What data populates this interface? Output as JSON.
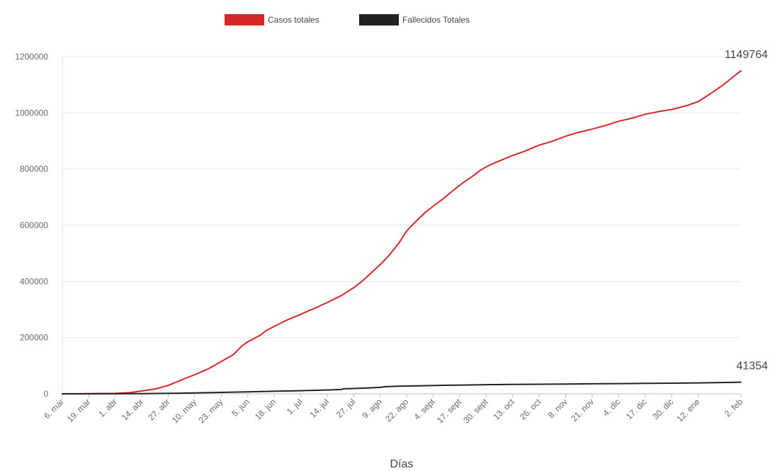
{
  "chart_data": {
    "type": "line",
    "title": "",
    "xlabel": "Días",
    "ylabel": "",
    "ylim": [
      0,
      1200000
    ],
    "yticks": [
      0,
      200000,
      400000,
      600000,
      800000,
      1000000,
      1200000
    ],
    "ytick_labels": [
      "0",
      "200000",
      "400000",
      "600000",
      "800000",
      "1000000",
      "1200000"
    ],
    "x_day_range": [
      0,
      333
    ],
    "x_ticks": [
      {
        "day": 0,
        "label": "6. mar"
      },
      {
        "day": 13,
        "label": "19. mar"
      },
      {
        "day": 26,
        "label": "1. abr"
      },
      {
        "day": 39,
        "label": "14. abr"
      },
      {
        "day": 52,
        "label": "27. abr"
      },
      {
        "day": 65,
        "label": "10. may"
      },
      {
        "day": 78,
        "label": "23. may"
      },
      {
        "day": 91,
        "label": "5. jun"
      },
      {
        "day": 104,
        "label": "18. jun"
      },
      {
        "day": 117,
        "label": "1. jul"
      },
      {
        "day": 130,
        "label": "14. jul"
      },
      {
        "day": 143,
        "label": "27. jul"
      },
      {
        "day": 156,
        "label": "9. ago"
      },
      {
        "day": 169,
        "label": "22. ago"
      },
      {
        "day": 182,
        "label": "4. sept"
      },
      {
        "day": 195,
        "label": "17. sept"
      },
      {
        "day": 208,
        "label": "30. sept"
      },
      {
        "day": 221,
        "label": "13. oct"
      },
      {
        "day": 234,
        "label": "26. oct"
      },
      {
        "day": 247,
        "label": "8. nov"
      },
      {
        "day": 260,
        "label": "21. nov"
      },
      {
        "day": 273,
        "label": "4. dic"
      },
      {
        "day": 286,
        "label": "17. dic"
      },
      {
        "day": 299,
        "label": "30. dic"
      },
      {
        "day": 312,
        "label": "12. ene"
      },
      {
        "day": 333,
        "label": "2. feb"
      }
    ],
    "legend_position": "top-center",
    "grid": true,
    "series": [
      {
        "name": "Casos totales",
        "color": "#d62728",
        "points": [
          [
            0,
            0
          ],
          [
            13,
            500
          ],
          [
            26,
            1500
          ],
          [
            33,
            4000
          ],
          [
            39,
            10000
          ],
          [
            46,
            18000
          ],
          [
            52,
            30000
          ],
          [
            58,
            48000
          ],
          [
            65,
            68000
          ],
          [
            72,
            90000
          ],
          [
            78,
            115000
          ],
          [
            84,
            140000
          ],
          [
            88,
            170000
          ],
          [
            91,
            185000
          ],
          [
            97,
            208000
          ],
          [
            100,
            225000
          ],
          [
            104,
            240000
          ],
          [
            110,
            262000
          ],
          [
            117,
            283000
          ],
          [
            124,
            305000
          ],
          [
            130,
            325000
          ],
          [
            137,
            350000
          ],
          [
            143,
            378000
          ],
          [
            147,
            400000
          ],
          [
            150,
            420000
          ],
          [
            156,
            460000
          ],
          [
            160,
            490000
          ],
          [
            165,
            535000
          ],
          [
            169,
            580000
          ],
          [
            173,
            610000
          ],
          [
            178,
            645000
          ],
          [
            182,
            668000
          ],
          [
            187,
            695000
          ],
          [
            192,
            725000
          ],
          [
            196,
            748000
          ],
          [
            201,
            773000
          ],
          [
            205,
            795000
          ],
          [
            208,
            808000
          ],
          [
            213,
            825000
          ],
          [
            221,
            848000
          ],
          [
            227,
            864000
          ],
          [
            234,
            885000
          ],
          [
            240,
            898000
          ],
          [
            247,
            917000
          ],
          [
            253,
            930000
          ],
          [
            260,
            942000
          ],
          [
            267,
            956000
          ],
          [
            273,
            970000
          ],
          [
            280,
            982000
          ],
          [
            286,
            995000
          ],
          [
            293,
            1005000
          ],
          [
            299,
            1012000
          ],
          [
            306,
            1025000
          ],
          [
            312,
            1040000
          ],
          [
            318,
            1068000
          ],
          [
            324,
            1098000
          ],
          [
            330,
            1133000
          ],
          [
            333,
            1149764
          ]
        ]
      },
      {
        "name": "Fallecidos Totales",
        "color": "#222222",
        "points": [
          [
            0,
            0
          ],
          [
            26,
            200
          ],
          [
            39,
            500
          ],
          [
            52,
            1500
          ],
          [
            65,
            3000
          ],
          [
            78,
            5000
          ],
          [
            91,
            7000
          ],
          [
            104,
            9000
          ],
          [
            117,
            11000
          ],
          [
            130,
            13500
          ],
          [
            137,
            15500
          ],
          [
            138,
            18000
          ],
          [
            143,
            19000
          ],
          [
            150,
            21000
          ],
          [
            156,
            23000
          ],
          [
            159,
            25500
          ],
          [
            165,
            27000
          ],
          [
            175,
            28500
          ],
          [
            185,
            30000
          ],
          [
            195,
            31000
          ],
          [
            208,
            32500
          ],
          [
            221,
            33300
          ],
          [
            234,
            34000
          ],
          [
            247,
            34700
          ],
          [
            260,
            35500
          ],
          [
            273,
            36300
          ],
          [
            286,
            37000
          ],
          [
            299,
            37800
          ],
          [
            312,
            38800
          ],
          [
            324,
            40000
          ],
          [
            333,
            41354
          ]
        ]
      }
    ],
    "end_labels": [
      {
        "series": "Casos totales",
        "text": "1149764"
      },
      {
        "series": "Fallecidos Totales",
        "text": "41354"
      }
    ]
  }
}
